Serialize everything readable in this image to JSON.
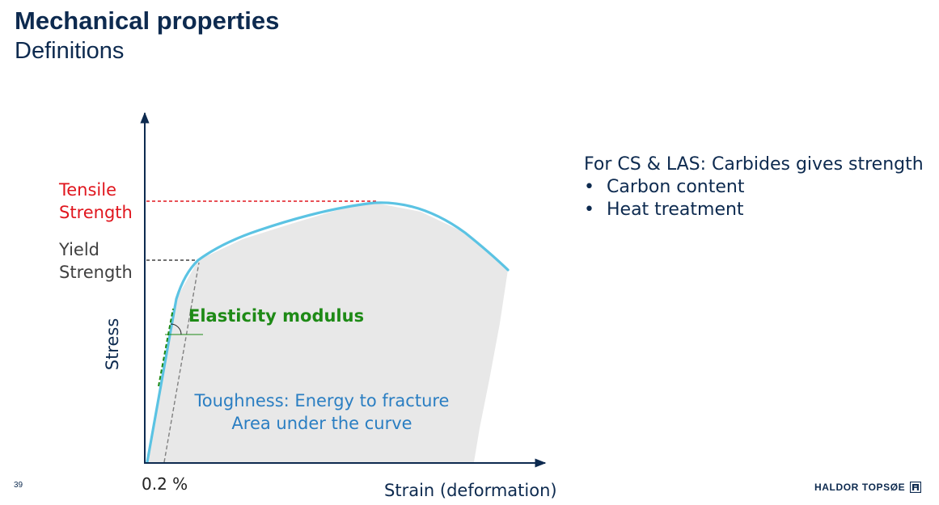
{
  "slide": {
    "title": "Mechanical properties",
    "subtitle": "Definitions",
    "page_number": "39"
  },
  "diagram": {
    "tensile_label_line1": "Tensile",
    "tensile_label_line2": "Strength",
    "yield_label_line1": "Yield",
    "yield_label_line2": "Strength",
    "y_axis_label": "Stress",
    "x_axis_label": "Strain (deformation)",
    "offset_label": "0.2 %",
    "elasticity_label": "Elasticity modulus",
    "toughness_line1": "Toughness: Energy to fracture",
    "toughness_line2": "Area under the curve"
  },
  "notes": {
    "heading": "For CS & LAS: Carbides gives strength",
    "items": [
      "Carbon content",
      "Heat treatment"
    ],
    "bullet": "•"
  },
  "logo": {
    "text": "HALDOR TOPSØE",
    "icon": "haldor-topsoe-mark-icon"
  },
  "colors": {
    "title": "#0d2a4f",
    "curve": "#5bc3e3",
    "area_fill": "#e8e8e8",
    "tensile": "#e0161e",
    "yield": "#404040",
    "elasticity": "#1e8a16",
    "toughness": "#2a7ec2",
    "axis": "#0d2a4f"
  }
}
